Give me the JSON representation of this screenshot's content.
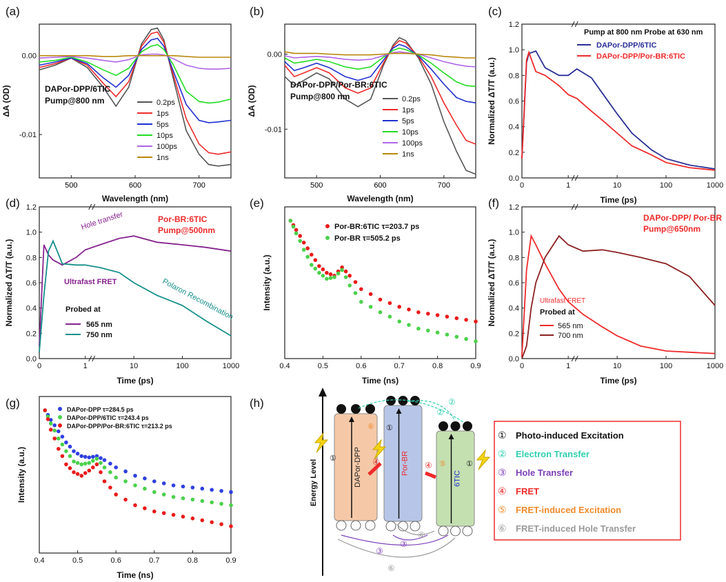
{
  "colors": {
    "black": "#111111",
    "gray": "#555555",
    "red": "#ee2a2a",
    "blue": "#1f2fd0",
    "green": "#22dd22",
    "purple": "#b065e8",
    "gold": "#b8860b",
    "navy": "#2a2f96",
    "darkpurple": "#86238e",
    "teal": "#158f8a",
    "darkred": "#8c2020",
    "pb_red": "#e81b1b",
    "pb_green": "#4ad14a",
    "pb_blue": "#3040e0"
  },
  "chart_data": [
    {
      "id": "a",
      "panel_label": "(a)",
      "type": "line",
      "xlabel": "Wavelength (nm)",
      "ylabel": "ΔA (OD)",
      "xlim": [
        450,
        750
      ],
      "ylim": [
        -0.0155,
        0.004
      ],
      "xticks": [
        500,
        600,
        700
      ],
      "yticks": [
        0.0,
        -0.01
      ],
      "yticklabels": [
        "0.00",
        "-0.01"
      ],
      "annotation": [
        "DAPor-DPP/6TIC",
        "Pump@800 nm"
      ],
      "x": [
        450,
        475,
        500,
        525,
        550,
        570,
        590,
        610,
        625,
        635,
        645,
        660,
        680,
        700,
        715,
        730,
        750
      ],
      "series": [
        {
          "name": "0.2ps",
          "color": "#555555",
          "values": [
            -0.0018,
            -0.0012,
            -0.0003,
            -0.0015,
            -0.004,
            -0.0064,
            -0.004,
            0.0015,
            0.0033,
            0.0035,
            0.002,
            -0.003,
            -0.0095,
            -0.0125,
            -0.0138,
            -0.014,
            -0.0138
          ]
        },
        {
          "name": "1ps",
          "color": "#ee2a2a",
          "values": [
            -0.0015,
            -0.001,
            -0.0003,
            -0.0012,
            -0.0035,
            -0.0052,
            -0.0033,
            0.0012,
            0.0028,
            0.003,
            0.0017,
            -0.0025,
            -0.008,
            -0.0112,
            -0.0123,
            -0.0125,
            -0.0122
          ]
        },
        {
          "name": "5ps",
          "color": "#1f2fd0",
          "values": [
            -0.0012,
            -0.0008,
            -0.0003,
            -0.001,
            -0.0028,
            -0.004,
            -0.0025,
            0.0008,
            0.002,
            0.0022,
            0.0012,
            -0.002,
            -0.0062,
            -0.0082,
            -0.0085,
            -0.0084,
            -0.0082
          ]
        },
        {
          "name": "10ps",
          "color": "#22dd22",
          "values": [
            -0.0008,
            -0.0006,
            -0.0002,
            -0.0008,
            -0.0018,
            -0.0025,
            -0.0016,
            0.0005,
            0.0012,
            0.0014,
            0.0008,
            -0.0012,
            -0.0045,
            -0.0058,
            -0.006,
            -0.0059,
            -0.0055
          ]
        },
        {
          "name": "100ps",
          "color": "#b065e8",
          "values": [
            -0.0003,
            -0.0002,
            -0.0001,
            -0.0003,
            -0.0006,
            -0.0008,
            -0.0005,
            0.0001,
            0.0002,
            0.0002,
            0.0001,
            -0.0004,
            -0.0012,
            -0.0016,
            -0.0017,
            -0.0017,
            -0.0016
          ]
        },
        {
          "name": "1ns",
          "color": "#b8860b",
          "values": [
            0,
            0,
            0,
            0,
            -0.0001,
            -0.0001,
            0,
            0,
            0,
            0,
            0,
            0,
            -0.0001,
            -0.0002,
            -0.0002,
            -0.0002,
            -0.0002
          ]
        }
      ]
    },
    {
      "id": "b",
      "panel_label": "(b)",
      "type": "line",
      "xlabel": "Wavelength (nm)",
      "ylabel": "ΔA (OD)",
      "xlim": [
        450,
        750
      ],
      "ylim": [
        -0.0165,
        0.004
      ],
      "xticks": [
        500,
        600,
        700
      ],
      "yticks": [
        0.0,
        -0.01
      ],
      "yticklabels": [
        "0.00",
        "-0.01"
      ],
      "annotation": [
        "DAPor-DPP/Por-BR:6TIC",
        "Pump@800 nm"
      ],
      "x": [
        450,
        465,
        480,
        500,
        520,
        545,
        565,
        585,
        605,
        620,
        630,
        640,
        660,
        680,
        700,
        720,
        735,
        750
      ],
      "series": [
        {
          "name": "0.2ps",
          "color": "#555555",
          "values": [
            -0.003,
            -0.0042,
            -0.0035,
            -0.0025,
            -0.0033,
            -0.006,
            -0.007,
            -0.006,
            -0.0015,
            0.0012,
            0.0022,
            0.0018,
            -0.0005,
            -0.004,
            -0.009,
            -0.013,
            -0.0155,
            -0.016
          ]
        },
        {
          "name": "1ps",
          "color": "#ee2a2a",
          "values": [
            -0.0015,
            -0.003,
            -0.0025,
            -0.0018,
            -0.0025,
            -0.0045,
            -0.0052,
            -0.0045,
            -0.0012,
            0.001,
            0.0018,
            0.0015,
            -0.0003,
            -0.003,
            -0.0065,
            -0.0095,
            -0.0115,
            -0.012
          ]
        },
        {
          "name": "5ps",
          "color": "#1f2fd0",
          "values": [
            -0.001,
            -0.0022,
            -0.0018,
            -0.0012,
            -0.0018,
            -0.003,
            -0.0035,
            -0.003,
            -0.0008,
            0.0008,
            0.0013,
            0.001,
            -0.0002,
            -0.002,
            -0.004,
            -0.0058,
            -0.0063,
            -0.0065
          ]
        },
        {
          "name": "10ps",
          "color": "#22dd22",
          "values": [
            -0.0005,
            -0.0012,
            -0.001,
            -0.0007,
            -0.001,
            -0.0017,
            -0.002,
            -0.0017,
            -0.0004,
            0.0005,
            0.0008,
            0.0006,
            -0.0001,
            -0.0012,
            -0.0025,
            -0.0037,
            -0.0042,
            -0.0043
          ]
        },
        {
          "name": "100ps",
          "color": "#b065e8",
          "values": [
            -0.0002,
            -0.0005,
            -0.0004,
            -0.0003,
            -0.0004,
            -0.0007,
            -0.0008,
            -0.0007,
            -0.0002,
            0.0002,
            0.0003,
            0.0002,
            0,
            -0.0005,
            -0.001,
            -0.0014,
            -0.0016,
            -0.0017
          ]
        },
        {
          "name": "1ns",
          "color": "#b8860b",
          "values": [
            0.0003,
            0.0001,
            0.0001,
            0.0001,
            0,
            -0.0001,
            -0.0001,
            -0.0001,
            0,
            0.0001,
            0.0001,
            0.0001,
            0,
            -0.0001,
            -0.0003,
            -0.0004,
            -0.0005,
            -0.0005
          ]
        }
      ]
    },
    {
      "id": "c",
      "panel_label": "(c)",
      "type": "line",
      "xlabel": "Time (ps)",
      "ylabel": "Normalized ΔT/T (a.u.)",
      "ylim": [
        0,
        1.2
      ],
      "yticks": [
        0.0,
        0.2,
        0.4,
        0.6,
        0.8,
        1.0,
        1.2
      ],
      "yticklabels": [
        "0.0",
        "0.2",
        "0.4",
        "0.6",
        "0.8",
        "1.0",
        "1.2"
      ],
      "xticklabels": [
        "0",
        "1",
        "10",
        "100",
        "1000"
      ],
      "annotation": [
        "Pump at 800 nm  Probe at 630 nm"
      ],
      "x": [
        0,
        0.1,
        0.15,
        0.3,
        0.5,
        0.8,
        1,
        1.5,
        3,
        5,
        10,
        20,
        50,
        100,
        300,
        1000
      ],
      "series": [
        {
          "name": "DAPor-DPP/6TIC",
          "color": "#2a2f96",
          "values": [
            0.15,
            0.9,
            0.97,
            0.99,
            0.86,
            0.8,
            0.8,
            0.85,
            0.78,
            0.66,
            0.5,
            0.35,
            0.22,
            0.15,
            0.1,
            0.07
          ]
        },
        {
          "name": "DAPor-DPP/Por-BR:6TIC",
          "color": "#ee2a2a",
          "values": [
            0.15,
            0.92,
            0.98,
            0.83,
            0.8,
            0.72,
            0.65,
            0.62,
            0.52,
            0.45,
            0.35,
            0.25,
            0.18,
            0.12,
            0.08,
            0.06
          ]
        }
      ]
    },
    {
      "id": "d",
      "panel_label": "(d)",
      "type": "line",
      "xlabel": "Time (ps)",
      "ylabel": "Normalized ΔT/T (a.u.)",
      "ylim": [
        0,
        1.2
      ],
      "yticks": [
        0.0,
        0.2,
        0.4,
        0.6,
        0.8,
        1.0,
        1.2
      ],
      "yticklabels": [
        "0.0",
        "0.2",
        "0.4",
        "0.6",
        "0.8",
        "1.0",
        "1.2"
      ],
      "xticklabels": [
        "0",
        "1",
        "10",
        "100",
        "1000"
      ],
      "annotation": [
        "Por-BR:6TIC",
        "Pump@500nm",
        "Hole transfer",
        "Ultrafast FRET",
        "Polaron Recombination",
        "Probed at"
      ],
      "x": [
        0,
        0.1,
        0.2,
        0.3,
        0.5,
        0.8,
        1,
        2,
        5,
        10,
        30,
        100,
        300,
        1000
      ],
      "series": [
        {
          "name": "565 nm",
          "color": "#86238e",
          "values": [
            0.1,
            0.9,
            0.82,
            0.78,
            0.74,
            0.8,
            0.86,
            0.9,
            0.95,
            0.97,
            0.92,
            0.9,
            0.88,
            0.85
          ]
        },
        {
          "name": "750 nm",
          "color": "#158f8a",
          "values": [
            0.05,
            0.5,
            0.85,
            0.93,
            0.75,
            0.74,
            0.74,
            0.72,
            0.68,
            0.6,
            0.5,
            0.42,
            0.3,
            0.18
          ]
        }
      ]
    },
    {
      "id": "e",
      "panel_label": "(e)",
      "type": "scatter",
      "xlabel": "Time (ns)",
      "ylabel": "Intensity (a.u.)",
      "xlim": [
        0.4,
        0.9
      ],
      "xticks": [
        0.4,
        0.5,
        0.6,
        0.7,
        0.8,
        0.9
      ],
      "xticklabels": [
        "0.4",
        "0.5",
        "0.6",
        "0.7",
        "0.8",
        "0.9"
      ],
      "x": [
        0.415,
        0.43,
        0.45,
        0.47,
        0.49,
        0.51,
        0.53,
        0.55,
        0.57,
        0.6,
        0.65,
        0.7,
        0.75,
        0.8,
        0.85,
        0.9
      ],
      "series": [
        {
          "name": "Por-BR:6TIC τ=203.7 ps",
          "color": "#e81b1b",
          "values": [
            1,
            0.85,
            0.68,
            0.55,
            0.45,
            0.4,
            0.38,
            0.44,
            0.38,
            0.3,
            0.25,
            0.22,
            0.2,
            0.19,
            0.18,
            0.17
          ]
        },
        {
          "name": "Por-BR τ=505.2 ps",
          "color": "#4ad14a",
          "values": [
            1,
            0.8,
            0.6,
            0.46,
            0.4,
            0.36,
            0.37,
            0.42,
            0.32,
            0.24,
            0.2,
            0.17,
            0.15,
            0.14,
            0.13,
            0.12
          ]
        }
      ]
    },
    {
      "id": "f",
      "panel_label": "(f)",
      "type": "line",
      "xlabel": "Time (ps)",
      "ylabel": "Normalized ΔT/T (a.u.)",
      "ylim": [
        0,
        1.2
      ],
      "yticks": [
        0.0,
        0.2,
        0.4,
        0.6,
        0.8,
        1.0,
        1.2
      ],
      "yticklabels": [
        "0.0",
        "0.2",
        "0.4",
        "0.6",
        "0.8",
        "1.0",
        "1.2"
      ],
      "xticklabels": [
        "0",
        "1",
        "10",
        "100",
        "1000"
      ],
      "annotation": [
        "DAPor-DPP/ Por-BR",
        "Pump@650nm",
        "Ultrafast FRET",
        "Probed at"
      ],
      "x": [
        0,
        0.1,
        0.2,
        0.3,
        0.5,
        0.8,
        1,
        2,
        5,
        10,
        30,
        100,
        300,
        1000
      ],
      "series": [
        {
          "name": "565 nm",
          "color": "#ee2a2a",
          "values": [
            0.02,
            0.7,
            0.97,
            0.9,
            0.75,
            0.55,
            0.45,
            0.35,
            0.25,
            0.18,
            0.1,
            0.06,
            0.05,
            0.04
          ]
        },
        {
          "name": "700 nm",
          "color": "#8c2020",
          "values": [
            0,
            0.1,
            0.4,
            0.6,
            0.8,
            0.97,
            0.9,
            0.85,
            0.86,
            0.84,
            0.8,
            0.75,
            0.65,
            0.42
          ]
        }
      ]
    },
    {
      "id": "g",
      "panel_label": "(g)",
      "type": "scatter",
      "xlabel": "Time (ns)",
      "ylabel": "Intensity (a.u.)",
      "xlim": [
        0.4,
        0.9
      ],
      "xticks": [
        0.4,
        0.5,
        0.6,
        0.7,
        0.8,
        0.9
      ],
      "xticklabels": [
        "0.4",
        "0.5",
        "0.6",
        "0.7",
        "0.8",
        "0.9"
      ],
      "x": [
        0.415,
        0.43,
        0.45,
        0.47,
        0.49,
        0.51,
        0.53,
        0.55,
        0.57,
        0.6,
        0.65,
        0.7,
        0.75,
        0.8,
        0.85,
        0.9
      ],
      "series": [
        {
          "name": "DAPor-DPP τ=284.5 ps",
          "color": "#3040e0",
          "values": [
            1,
            0.85,
            0.7,
            0.58,
            0.5,
            0.46,
            0.45,
            0.46,
            0.43,
            0.38,
            0.33,
            0.3,
            0.28,
            0.27,
            0.26,
            0.25
          ]
        },
        {
          "name": "DAPor-DPP/6TIC τ=243.4 ps",
          "color": "#4ad14a",
          "values": [
            1,
            0.8,
            0.62,
            0.5,
            0.42,
            0.4,
            0.41,
            0.44,
            0.38,
            0.32,
            0.28,
            0.25,
            0.23,
            0.22,
            0.21,
            0.2
          ]
        },
        {
          "name": "DAPor-DPP/Por-BR:6TIC τ=213.2 ps",
          "color": "#e81b1b",
          "values": [
            1,
            0.72,
            0.52,
            0.4,
            0.35,
            0.33,
            0.36,
            0.4,
            0.3,
            0.24,
            0.2,
            0.18,
            0.17,
            0.16,
            0.15,
            0.14
          ]
        }
      ]
    }
  ],
  "diagram_h": {
    "panel_label": "(h)",
    "axis_label": "Energy Level",
    "boxes": [
      {
        "label": "DAPor-DPP",
        "fill": "#f5c9a8"
      },
      {
        "label": "Por-BR",
        "fill": "#b7c6e8"
      },
      {
        "label": "6TIC",
        "fill": "#c4e0b0"
      }
    ],
    "legend": [
      {
        "num": "①",
        "text": "Photo-induced Excitation",
        "color": "#111111"
      },
      {
        "num": "②",
        "text": "Electron Transfer",
        "color": "#2fcfb0"
      },
      {
        "num": "③",
        "text": "Hole Transfer",
        "color": "#7b3fb8"
      },
      {
        "num": "④",
        "text": "FRET",
        "color": "#ee2a2a"
      },
      {
        "num": "⑤",
        "text": "FRET-induced Excitation",
        "color": "#ef8a2a"
      },
      {
        "num": "⑥",
        "text": "FRET-induced Hole Transfer",
        "color": "#9a9a9a"
      }
    ],
    "markers": {
      "one": "①",
      "two": "②",
      "three": "③",
      "four": "④",
      "five": "⑤",
      "six": "⑥"
    }
  }
}
